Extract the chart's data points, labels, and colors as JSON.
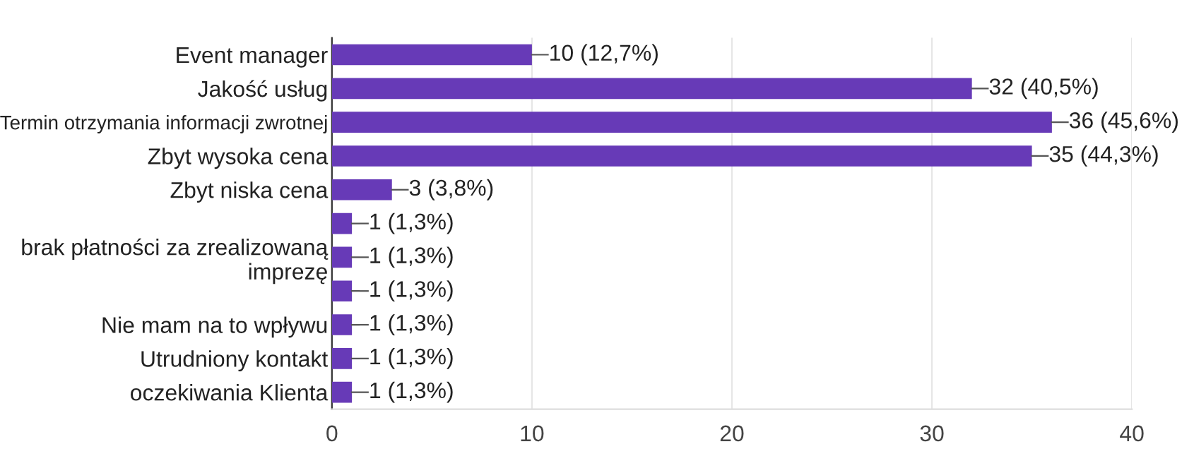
{
  "chart_data": {
    "type": "bar",
    "orientation": "horizontal",
    "categories": [
      "Event manager",
      "Jakość usług",
      "Termin otrzymania informacji zwrotnej",
      "Zbyt wysoka cena",
      "Zbyt niska cena",
      null,
      "brak płatności za zrealizowaną imprezę",
      null,
      "Nie mam na to wpływu",
      "Utrudniony kontakt",
      "oczekiwania Klienta"
    ],
    "values": [
      10,
      32,
      36,
      35,
      3,
      1,
      1,
      1,
      1,
      1,
      1
    ],
    "value_labels": [
      "10 (12,7%)",
      "32 (40,5%)",
      "36 (45,6%)",
      "35 (44,3%)",
      "3 (3,8%)",
      "1 (1,3%)",
      "1 (1,3%)",
      "1 (1,3%)",
      "1 (1,3%)",
      "1 (1,3%)",
      "1 (1,3%)"
    ],
    "color": "#673ab7",
    "xlim": [
      0,
      40
    ],
    "xticks": [
      0,
      10,
      20,
      30,
      40
    ],
    "grid": "x",
    "legend": false
  }
}
